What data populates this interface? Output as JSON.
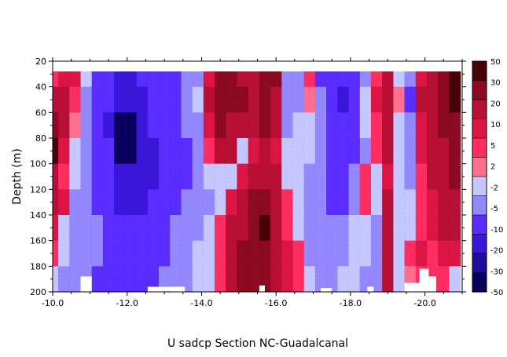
{
  "chart_data": {
    "type": "heatmap",
    "title": "U sadcp Section NC-Guadalcanal",
    "xlabel": "",
    "ylabel": "Depth (m)",
    "xlim": [
      -10.0,
      -21.0
    ],
    "ylim": [
      20,
      200
    ],
    "x_ticks": [
      "-10.0",
      "-12.0",
      "-14.0",
      "-16.0",
      "-18.0",
      "-20.0"
    ],
    "x_tick_values": [
      -10.0,
      -12.0,
      -14.0,
      -16.0,
      -18.0,
      -20.0
    ],
    "y_ticks": [
      "20",
      "40",
      "60",
      "80",
      "100",
      "120",
      "140",
      "160",
      "180",
      "200"
    ],
    "y_tick_values": [
      20,
      40,
      60,
      80,
      100,
      120,
      140,
      160,
      180,
      200
    ],
    "colorbar": {
      "labels": [
        "50",
        "30",
        "20",
        "10",
        "5",
        "2",
        "-2",
        "-5",
        "-10",
        "-20",
        "-30",
        "-50"
      ],
      "boundaries": [
        50,
        30,
        20,
        10,
        5,
        2,
        -2,
        -5,
        -10,
        -20,
        -30,
        -50
      ],
      "colors": [
        "#4a0008",
        "#8c0a1f",
        "#b80f35",
        "#dc1545",
        "#ff2d61",
        "#ff7090",
        "#c4c8ff",
        "#9488ff",
        "#5a2cff",
        "#3a16d8",
        "#1e0c9c",
        "#08005a"
      ]
    },
    "data_top_depth": 28,
    "x_columns": [
      -10.0,
      -10.3,
      -10.6,
      -10.9,
      -11.2,
      -11.5,
      -11.8,
      -12.1,
      -12.4,
      -12.7,
      -13.0,
      -13.3,
      -13.6,
      -13.9,
      -14.2,
      -14.5,
      -14.8,
      -15.1,
      -15.4,
      -15.7,
      -16.0,
      -16.3,
      -16.6,
      -16.9,
      -17.2,
      -17.5,
      -17.8,
      -18.1,
      -18.4,
      -18.7,
      -19.0,
      -19.3,
      -19.6,
      -19.9,
      -20.2,
      -20.5,
      -20.8
    ],
    "depth_rows": [
      30,
      50,
      70,
      90,
      110,
      130,
      150,
      170,
      190
    ],
    "values_cm_s": [
      [
        3,
        6,
        5,
        -4,
        -12,
        -15,
        -22,
        -25,
        -20,
        -15,
        -12,
        -14,
        -10,
        -6,
        8,
        22,
        26,
        18,
        15,
        20,
        25,
        -6,
        -8,
        2,
        -12,
        -15,
        -20,
        -14,
        -6,
        4,
        14,
        -3,
        -10,
        8,
        14,
        20,
        35
      ],
      [
        12,
        15,
        3,
        -6,
        -14,
        -20,
        -26,
        -30,
        -25,
        -18,
        -14,
        -12,
        -10,
        -4,
        12,
        26,
        22,
        20,
        18,
        24,
        16,
        -8,
        -10,
        1,
        -10,
        -16,
        -22,
        -15,
        -4,
        5,
        18,
        -2,
        -12,
        10,
        18,
        25,
        32
      ],
      [
        25,
        12,
        -2,
        -8,
        -14,
        -22,
        -32,
        -35,
        -28,
        -20,
        -15,
        -12,
        -10,
        -6,
        8,
        22,
        18,
        14,
        16,
        20,
        10,
        -6,
        -4,
        -3,
        -8,
        -14,
        -18,
        -12,
        -5,
        3,
        15,
        -4,
        -10,
        8,
        15,
        22,
        28
      ],
      [
        30,
        8,
        -3,
        -8,
        -12,
        -20,
        -32,
        -35,
        -30,
        -22,
        -16,
        -14,
        -12,
        -8,
        4,
        12,
        10,
        -3,
        8,
        14,
        8,
        -4,
        -3,
        -5,
        -9,
        -14,
        -18,
        -12,
        -6,
        2,
        12,
        -5,
        -8,
        6,
        12,
        18,
        24
      ],
      [
        18,
        4,
        -5,
        -10,
        -12,
        -18,
        -26,
        -30,
        -28,
        -24,
        -18,
        -14,
        -12,
        -9,
        -4,
        -5,
        -4,
        6,
        14,
        18,
        12,
        -3,
        -5,
        -7,
        -10,
        -12,
        -15,
        -8,
        2,
        -4,
        8,
        -4,
        -6,
        4,
        10,
        15,
        20
      ],
      [
        14,
        6,
        -6,
        -10,
        -12,
        -16,
        -22,
        -24,
        -22,
        -20,
        -16,
        -12,
        -10,
        -8,
        -6,
        -4,
        6,
        14,
        22,
        26,
        18,
        4,
        -4,
        -8,
        -10,
        -12,
        -12,
        -6,
        4,
        -3,
        10,
        -3,
        -5,
        2,
        8,
        12,
        16
      ],
      [
        8,
        -3,
        -6,
        -8,
        -10,
        -12,
        -16,
        -18,
        -18,
        -16,
        -14,
        -10,
        -8,
        -6,
        -4,
        3,
        10,
        18,
        26,
        30,
        16,
        3,
        -5,
        -8,
        -10,
        -10,
        -8,
        -4,
        -3,
        -6,
        14,
        -4,
        -3,
        4,
        6,
        10,
        12
      ],
      [
        4,
        -4,
        -6,
        -8,
        -10,
        -12,
        -14,
        -14,
        -16,
        -14,
        -12,
        -10,
        -8,
        -5,
        -3,
        4,
        12,
        20,
        28,
        24,
        12,
        6,
        2,
        -6,
        -10,
        -8,
        -6,
        -5,
        -4,
        -6,
        18,
        -3,
        2,
        5,
        4,
        6,
        8
      ],
      [
        -4,
        -6,
        -8,
        -10,
        -12,
        -12,
        -12,
        -14,
        -14,
        -12,
        -10,
        -10,
        -8,
        -5,
        -4,
        2,
        14,
        22,
        24,
        20,
        14,
        8,
        4,
        -5,
        -10,
        -8,
        -5,
        -4,
        -6,
        -8,
        12,
        -3,
        -2,
        3,
        2,
        4,
        -5
      ]
    ],
    "blank_regions": [
      {
        "x": [
          -10.75,
          -11.05
        ],
        "depth": [
          188,
          200
        ]
      },
      {
        "x": [
          -12.55,
          -13.55
        ],
        "depth": [
          196,
          200
        ]
      },
      {
        "x": [
          -15.55,
          -15.7
        ],
        "depth": [
          195,
          200
        ]
      },
      {
        "x": [
          -17.2,
          -17.5
        ],
        "depth": [
          197,
          200
        ]
      },
      {
        "x": [
          -18.45,
          -18.62
        ],
        "depth": [
          196,
          200
        ]
      },
      {
        "x": [
          -19.45,
          -19.85
        ],
        "depth": [
          193,
          200
        ]
      },
      {
        "x": [
          -19.85,
          -20.1
        ],
        "depth": [
          182,
          200
        ]
      },
      {
        "x": [
          -20.1,
          -20.3
        ],
        "depth": [
          188,
          200
        ]
      }
    ],
    "grid": false,
    "legend": "right-colorbar"
  }
}
